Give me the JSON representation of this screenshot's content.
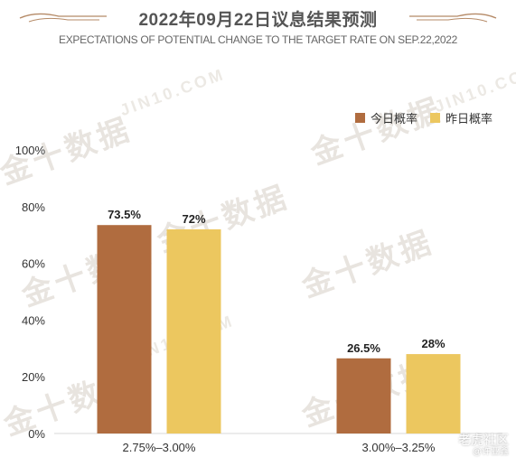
{
  "chart_data": {
    "type": "bar",
    "title": "2022年09月22日议息结果预测",
    "subtitle": "EXPECTATIONS OF POTENTIAL CHANGE TO THE TARGET RATE ON SEP.22,2022",
    "categories": [
      "2.75%–3.00%",
      "3.00%–3.25%"
    ],
    "series": [
      {
        "name": "今日概率",
        "values": [
          73.5,
          26.5
        ],
        "labels": [
          "73.5%",
          "26.5%"
        ],
        "color": "#b06c3f"
      },
      {
        "name": "昨日概率",
        "values": [
          72,
          28
        ],
        "labels": [
          "72%",
          "28%"
        ],
        "color": "#ecc75f"
      }
    ],
    "y_ticks": [
      "0%",
      "20%",
      "40%",
      "60%",
      "80%",
      "100%"
    ],
    "ylim": [
      0,
      100
    ],
    "grid": false,
    "legend": "top-right"
  },
  "watermark": {
    "brand": "金十数据",
    "url": "JIN10.COM"
  },
  "footer": {
    "community": "老虎社区",
    "author": "@许亚鑫"
  }
}
